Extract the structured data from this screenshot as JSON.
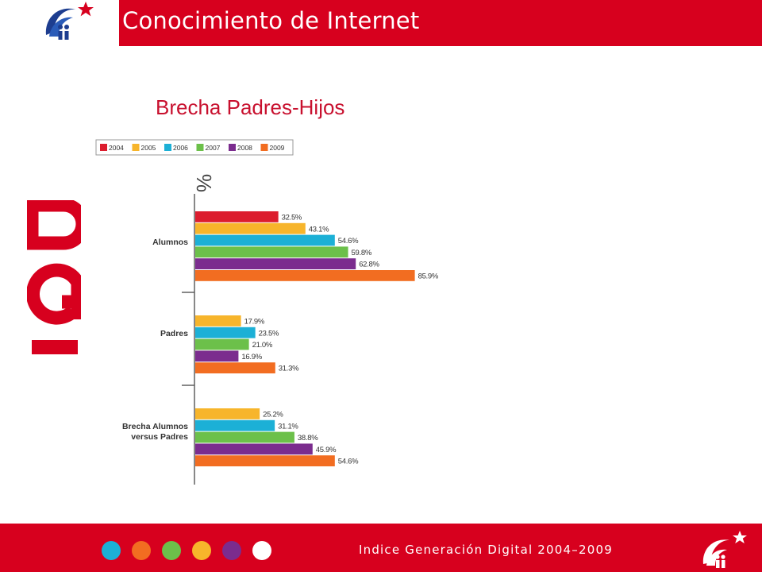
{
  "header": {
    "title": "Conocimiento de Internet"
  },
  "colors": {
    "brand_red": "#d7001e",
    "years": {
      "2004": "#dc1d2e",
      "2005": "#f7b52b",
      "2006": "#1cb0d6",
      "2007": "#6cc04a",
      "2008": "#7b2c8e",
      "2009": "#f26d21"
    }
  },
  "footer": {
    "text": "Indice Generación Digital 2004–2009",
    "dots": [
      "#1cb0d6",
      "#f26d21",
      "#6cc04a",
      "#f7b52b",
      "#7b2c8e",
      "#ffffff"
    ]
  },
  "side_brand": {
    "text": "IGD"
  },
  "chart_data": {
    "type": "bar",
    "orientation": "horizontal",
    "title": "Brecha Padres-Hijos",
    "ylabel": "%",
    "legend_position": "top-left",
    "categories": [
      "Alumnos",
      "Padres",
      "Brecha Alumnos versus Padres"
    ],
    "series": [
      {
        "name": "2004",
        "values": [
          32.5,
          null,
          null
        ],
        "labels": [
          "32.5%",
          null,
          null
        ]
      },
      {
        "name": "2005",
        "values": [
          43.1,
          17.9,
          25.2
        ],
        "labels": [
          "43.1%",
          "17.9%",
          "25.2%"
        ]
      },
      {
        "name": "2006",
        "values": [
          54.6,
          23.5,
          31.1
        ],
        "labels": [
          "54.6%",
          "23.5%",
          "31.1%"
        ]
      },
      {
        "name": "2007",
        "values": [
          59.8,
          21.0,
          38.8
        ],
        "labels": [
          "59.8%",
          "21.0%",
          "38.8%"
        ]
      },
      {
        "name": "2008",
        "values": [
          62.8,
          16.9,
          45.9
        ],
        "labels": [
          "62.8%",
          "16.9%",
          "45.9%"
        ]
      },
      {
        "name": "2009",
        "values": [
          85.9,
          31.3,
          54.6
        ],
        "labels": [
          "85.9%",
          "31.3%",
          "54.6%"
        ]
      }
    ],
    "grid": false
  }
}
